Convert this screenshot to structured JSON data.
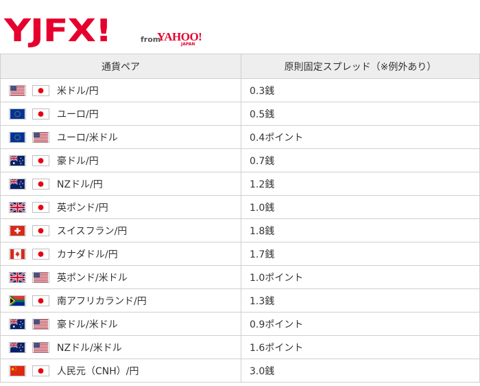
{
  "brand": {
    "logo": "YJFX!",
    "from": "from",
    "yahoo": "YAHOO!",
    "japan": "JAPAN"
  },
  "table": {
    "headers": [
      "通貨ペア",
      "原則固定スプレッド（※例外あり）"
    ],
    "rows": [
      {
        "flags": [
          "us",
          "jp"
        ],
        "pair": "米ドル/円",
        "spread": "0.3銭"
      },
      {
        "flags": [
          "eu",
          "jp"
        ],
        "pair": "ユーロ/円",
        "spread": "0.5銭"
      },
      {
        "flags": [
          "eu",
          "us"
        ],
        "pair": "ユーロ/米ドル",
        "spread": "0.4ポイント"
      },
      {
        "flags": [
          "au",
          "jp"
        ],
        "pair": "豪ドル/円",
        "spread": "0.7銭"
      },
      {
        "flags": [
          "nz",
          "jp"
        ],
        "pair": "NZドル/円",
        "spread": "1.2銭"
      },
      {
        "flags": [
          "gb",
          "jp"
        ],
        "pair": "英ポンド/円",
        "spread": "1.0銭"
      },
      {
        "flags": [
          "ch",
          "jp"
        ],
        "pair": "スイスフラン/円",
        "spread": "1.8銭"
      },
      {
        "flags": [
          "ca",
          "jp"
        ],
        "pair": "カナダドル/円",
        "spread": "1.7銭"
      },
      {
        "flags": [
          "gb",
          "us"
        ],
        "pair": "英ポンド/米ドル",
        "spread": "1.0ポイント"
      },
      {
        "flags": [
          "za",
          "jp"
        ],
        "pair": "南アフリカランド/円",
        "spread": "1.3銭"
      },
      {
        "flags": [
          "au",
          "us"
        ],
        "pair": "豪ドル/米ドル",
        "spread": "0.9ポイント"
      },
      {
        "flags": [
          "nz",
          "us"
        ],
        "pair": "NZドル/米ドル",
        "spread": "1.6ポイント"
      },
      {
        "flags": [
          "cn",
          "jp"
        ],
        "pair": "人民元（CNH）/円",
        "spread": "3.0銭"
      }
    ]
  }
}
